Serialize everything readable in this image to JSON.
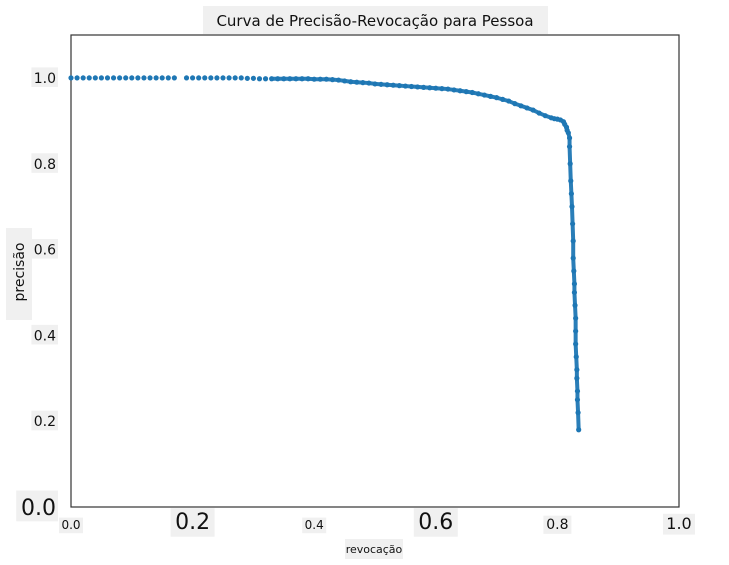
{
  "chart_data": {
    "type": "scatter",
    "title": "Curva de Precisão-Revocação para Pessoa",
    "xlabel": "revocação",
    "ylabel": "precisão",
    "xlim": [
      0.0,
      1.0
    ],
    "ylim": [
      0.0,
      1.1
    ],
    "x_ticks": [
      "0.0",
      "0.2",
      "0.4",
      "0.6",
      "0.8",
      "1.0"
    ],
    "y_ticks": [
      "0.0",
      "0.2",
      "0.4",
      "0.6",
      "0.8",
      "1.0"
    ],
    "grid": false,
    "legend": "none",
    "series": [
      {
        "color": "#1f77b4",
        "x": [
          0.0,
          0.01,
          0.02,
          0.03,
          0.04,
          0.05,
          0.06,
          0.07,
          0.08,
          0.09,
          0.1,
          0.11,
          0.12,
          0.13,
          0.14,
          0.15,
          0.16,
          0.17,
          0.19,
          0.2,
          0.21,
          0.22,
          0.23,
          0.24,
          0.25,
          0.26,
          0.27,
          0.28,
          0.29,
          0.3,
          0.31,
          0.32,
          0.33,
          0.34,
          0.35,
          0.36,
          0.37,
          0.38,
          0.39,
          0.4,
          0.41,
          0.42,
          0.43,
          0.44,
          0.45,
          0.46,
          0.47,
          0.48,
          0.49,
          0.5,
          0.51,
          0.52,
          0.53,
          0.54,
          0.55,
          0.56,
          0.57,
          0.58,
          0.59,
          0.6,
          0.61,
          0.62,
          0.63,
          0.64,
          0.65,
          0.66,
          0.67,
          0.68,
          0.69,
          0.7,
          0.71,
          0.72,
          0.73,
          0.74,
          0.75,
          0.76,
          0.77,
          0.78,
          0.79,
          0.795,
          0.8,
          0.805,
          0.81,
          0.812,
          0.815,
          0.816,
          0.818,
          0.82,
          0.82,
          0.821,
          0.822,
          0.823,
          0.824,
          0.825,
          0.826,
          0.826,
          0.827,
          0.828,
          0.828,
          0.829,
          0.83,
          0.83,
          0.83,
          0.831,
          0.832,
          0.832,
          0.833,
          0.833,
          0.834,
          0.835
        ],
        "y": [
          1.0,
          1.0,
          1.0,
          1.0,
          1.0,
          1.0,
          1.0,
          1.0,
          1.0,
          1.0,
          1.0,
          1.0,
          1.0,
          1.0,
          1.0,
          1.0,
          1.0,
          1.0,
          1.0,
          1.0,
          1.0,
          1.0,
          1.0,
          1.0,
          1.0,
          1.0,
          1.0,
          1.0,
          0.999,
          0.999,
          0.998,
          0.998,
          0.998,
          0.998,
          0.998,
          0.998,
          0.998,
          0.998,
          0.998,
          0.997,
          0.997,
          0.997,
          0.996,
          0.995,
          0.993,
          0.991,
          0.99,
          0.989,
          0.988,
          0.986,
          0.985,
          0.984,
          0.983,
          0.982,
          0.981,
          0.98,
          0.979,
          0.978,
          0.977,
          0.976,
          0.975,
          0.974,
          0.972,
          0.97,
          0.968,
          0.966,
          0.963,
          0.96,
          0.957,
          0.954,
          0.95,
          0.946,
          0.94,
          0.935,
          0.93,
          0.925,
          0.918,
          0.912,
          0.907,
          0.905,
          0.904,
          0.902,
          0.898,
          0.892,
          0.885,
          0.878,
          0.872,
          0.86,
          0.84,
          0.8,
          0.76,
          0.73,
          0.7,
          0.66,
          0.62,
          0.58,
          0.55,
          0.52,
          0.5,
          0.47,
          0.44,
          0.41,
          0.38,
          0.35,
          0.32,
          0.3,
          0.27,
          0.25,
          0.22,
          0.18
        ]
      }
    ]
  }
}
